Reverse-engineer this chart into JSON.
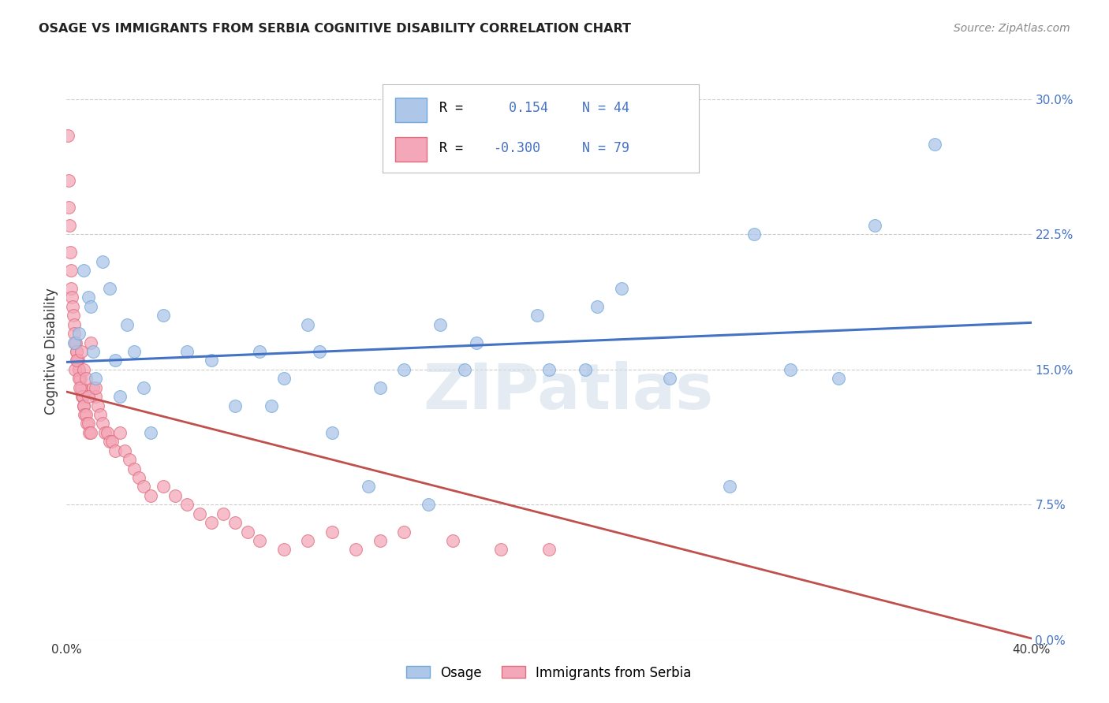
{
  "title": "OSAGE VS IMMIGRANTS FROM SERBIA COGNITIVE DISABILITY CORRELATION CHART",
  "source": "Source: ZipAtlas.com",
  "ylabel": "Cognitive Disability",
  "xlim": [
    0.0,
    40.0
  ],
  "ylim": [
    0.0,
    32.0
  ],
  "yticks": [
    0.0,
    7.5,
    15.0,
    22.5,
    30.0
  ],
  "osage_R": 0.154,
  "osage_N": 44,
  "serbia_R": -0.3,
  "serbia_N": 79,
  "osage_color_face": "#aec6e8",
  "osage_color_edge": "#6fa8dc",
  "osage_line_color": "#4472c4",
  "serbia_color_face": "#f4a7b9",
  "serbia_color_edge": "#e06c7c",
  "serbia_line_color": "#c0504d",
  "grid_color": "#cccccc",
  "watermark": "ZIPatlas",
  "watermark_color": "#d0dce8",
  "legend_label1": "Osage",
  "legend_label2": "Immigrants from Serbia",
  "osage_x": [
    0.3,
    0.5,
    0.7,
    0.9,
    1.0,
    1.1,
    1.2,
    1.5,
    1.8,
    2.0,
    2.2,
    2.5,
    2.8,
    3.2,
    3.5,
    4.0,
    5.0,
    6.0,
    7.0,
    8.0,
    9.0,
    10.0,
    11.0,
    12.5,
    14.0,
    15.5,
    17.0,
    19.5,
    21.5,
    23.0,
    25.0,
    27.5,
    28.5,
    32.0,
    33.5,
    36.0,
    15.0,
    16.5,
    20.0,
    22.0,
    13.0,
    8.5,
    10.5,
    30.0
  ],
  "osage_y": [
    16.5,
    17.0,
    20.5,
    19.0,
    18.5,
    16.0,
    14.5,
    21.0,
    19.5,
    15.5,
    13.5,
    17.5,
    16.0,
    14.0,
    11.5,
    18.0,
    16.0,
    15.5,
    13.0,
    16.0,
    14.5,
    17.5,
    11.5,
    8.5,
    15.0,
    17.5,
    16.5,
    18.0,
    15.0,
    19.5,
    14.5,
    8.5,
    22.5,
    14.5,
    23.0,
    27.5,
    7.5,
    15.0,
    15.0,
    18.5,
    14.0,
    13.0,
    16.0,
    15.0
  ],
  "serbia_x": [
    0.05,
    0.08,
    0.1,
    0.12,
    0.15,
    0.18,
    0.2,
    0.22,
    0.25,
    0.28,
    0.3,
    0.32,
    0.35,
    0.38,
    0.4,
    0.42,
    0.45,
    0.48,
    0.5,
    0.52,
    0.55,
    0.58,
    0.6,
    0.62,
    0.65,
    0.68,
    0.7,
    0.72,
    0.75,
    0.8,
    0.85,
    0.9,
    0.95,
    1.0,
    1.1,
    1.2,
    1.3,
    1.4,
    1.5,
    1.6,
    1.7,
    1.8,
    1.9,
    2.0,
    2.2,
    2.4,
    2.6,
    2.8,
    3.0,
    3.2,
    3.5,
    4.0,
    4.5,
    5.0,
    5.5,
    6.0,
    6.5,
    7.0,
    7.5,
    8.0,
    9.0,
    10.0,
    11.0,
    12.0,
    13.0,
    14.0,
    16.0,
    18.0,
    20.0,
    0.35,
    0.4,
    0.5,
    0.55,
    0.6,
    0.7,
    0.8,
    0.9,
    1.0,
    1.2
  ],
  "serbia_y": [
    28.0,
    25.5,
    24.0,
    23.0,
    21.5,
    20.5,
    19.5,
    19.0,
    18.5,
    18.0,
    17.5,
    17.0,
    16.5,
    16.5,
    16.0,
    16.0,
    15.5,
    15.5,
    15.0,
    15.0,
    14.5,
    14.5,
    14.0,
    14.0,
    13.5,
    13.5,
    13.0,
    13.0,
    12.5,
    12.5,
    12.0,
    12.0,
    11.5,
    11.5,
    14.0,
    13.5,
    13.0,
    12.5,
    12.0,
    11.5,
    11.5,
    11.0,
    11.0,
    10.5,
    11.5,
    10.5,
    10.0,
    9.5,
    9.0,
    8.5,
    8.0,
    8.5,
    8.0,
    7.5,
    7.0,
    6.5,
    7.0,
    6.5,
    6.0,
    5.5,
    5.0,
    5.5,
    6.0,
    5.0,
    5.5,
    6.0,
    5.5,
    5.0,
    5.0,
    15.0,
    15.5,
    14.5,
    14.0,
    16.0,
    15.0,
    14.5,
    13.5,
    16.5,
    14.0
  ]
}
